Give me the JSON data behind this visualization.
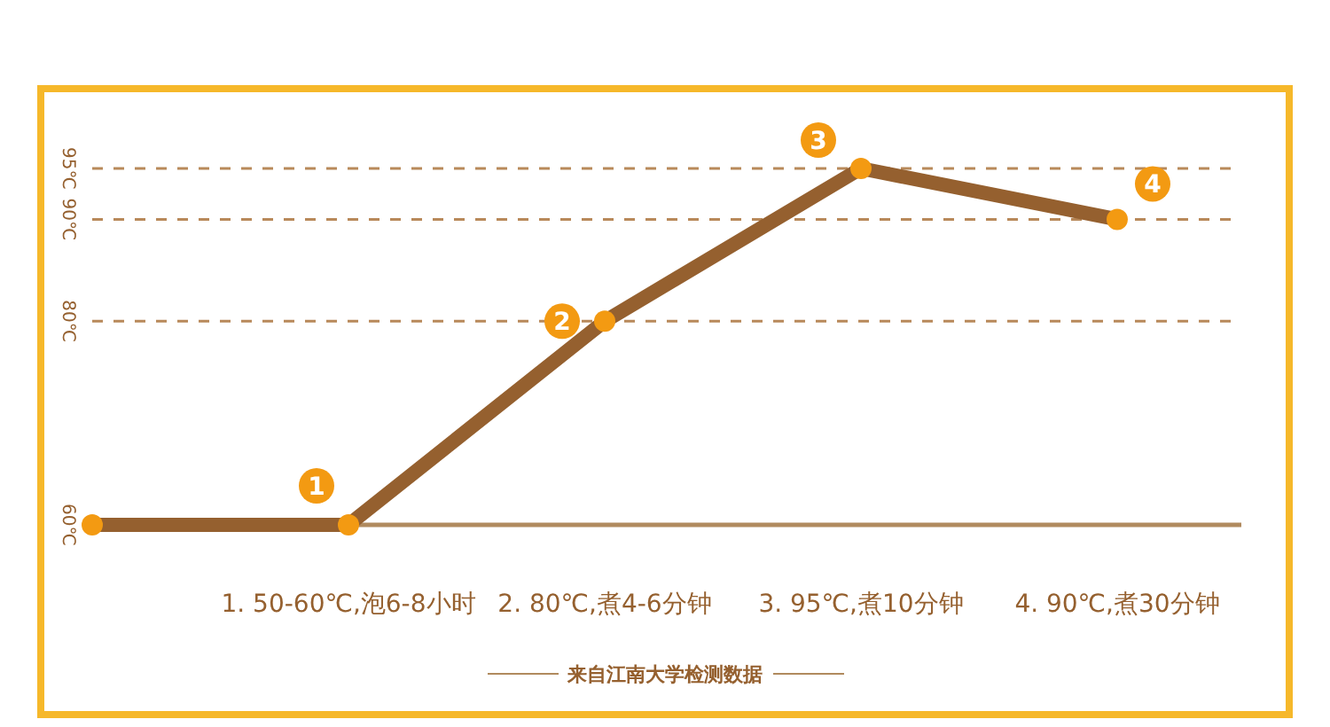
{
  "chart_data": {
    "type": "line",
    "categories": [
      null,
      "1. 50-60℃,泡6-8小时",
      "2. 80℃,煮4-6分钟",
      "3. 95℃,煮10分钟",
      "4. 90℃,煮30分钟"
    ],
    "series": [
      {
        "color": "#95602f",
        "values": [
          60,
          60,
          80,
          95,
          90
        ]
      }
    ],
    "ylim": [
      60,
      95
    ],
    "marker": "circle",
    "yticks": [
      {
        "value": 60,
        "label": "60℃"
      },
      {
        "value": 80,
        "label": "80℃"
      },
      {
        "value": 90,
        "label": "90℃"
      },
      {
        "value": 95,
        "label": "95℃"
      }
    ],
    "grid": "y",
    "line_style": "solid",
    "annotations": [
      {
        "text": "1",
        "x": "1. 50-60℃,泡6-8小时",
        "y": 60
      },
      {
        "text": "2",
        "x": "2. 80℃,煮4-6分钟",
        "y": 80
      },
      {
        "text": "3",
        "x": "3. 95℃,煮10分钟",
        "y": 95
      },
      {
        "text": "4",
        "x": "4. 90℃,煮30分钟",
        "y": 90
      },
      "来自江南大学检测数据"
    ]
  }
}
